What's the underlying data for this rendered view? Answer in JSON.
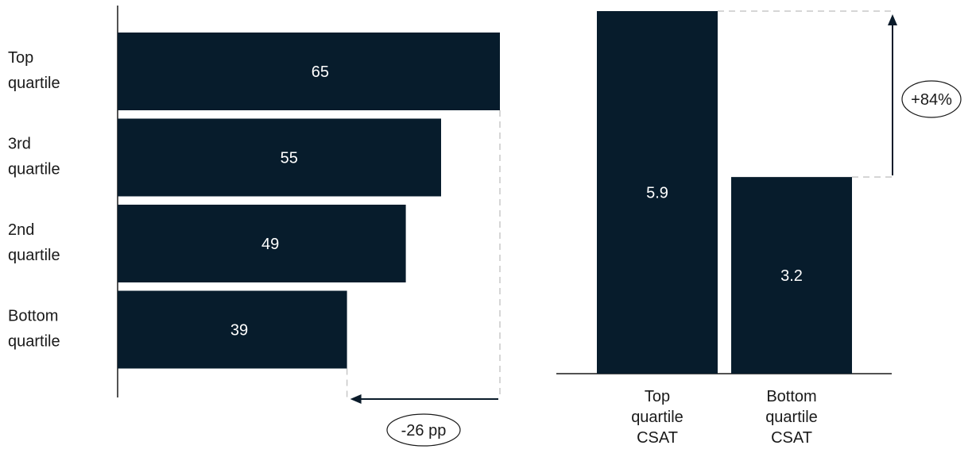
{
  "chart_data": [
    {
      "type": "bar",
      "orientation": "horizontal",
      "categories": [
        [
          "Top",
          "quartile"
        ],
        [
          "3rd",
          "quartile"
        ],
        [
          "2nd",
          "quartile"
        ],
        [
          "Bottom",
          "quartile"
        ]
      ],
      "values": [
        65,
        55,
        49,
        39
      ],
      "data_labels": [
        "65",
        "55",
        "49",
        "39"
      ],
      "xlim": [
        0,
        65
      ],
      "bar_color": "#071c2c",
      "annotation": {
        "label": "-26 pp",
        "from": "Top quartile",
        "to": "Bottom quartile"
      }
    },
    {
      "type": "bar",
      "orientation": "vertical",
      "categories": [
        [
          "Top",
          "quartile",
          "CSAT"
        ],
        [
          "Bottom",
          "quartile",
          "CSAT"
        ]
      ],
      "values": [
        5.9,
        3.2
      ],
      "data_labels": [
        "5.9",
        "3.2"
      ],
      "ylim": [
        0,
        5.9
      ],
      "bar_color": "#071c2c",
      "annotation": {
        "label": "+84%",
        "from": "Bottom quartile CSAT",
        "to": "Top quartile CSAT"
      }
    }
  ]
}
